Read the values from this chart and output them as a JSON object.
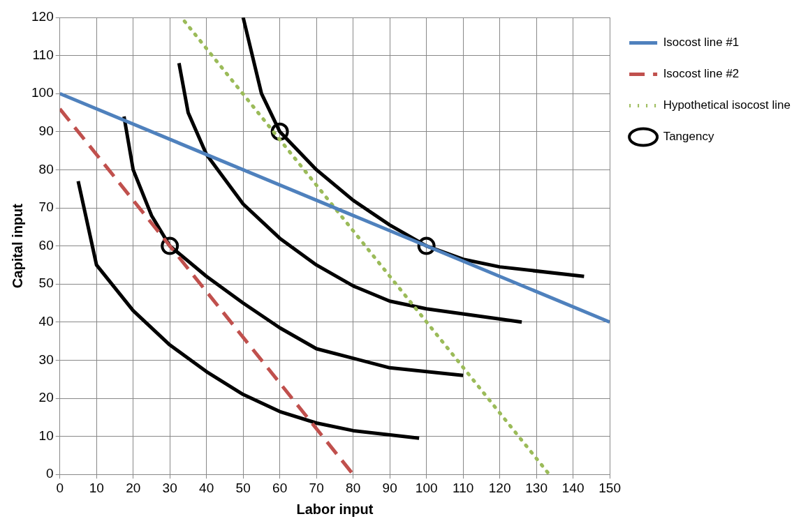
{
  "chart_data": {
    "type": "line",
    "xlabel": "Labor input",
    "ylabel": "Capital input",
    "xlim": [
      0,
      150
    ],
    "ylim": [
      0,
      120
    ],
    "xticks": [
      0,
      10,
      20,
      30,
      40,
      50,
      60,
      70,
      80,
      90,
      100,
      110,
      120,
      130,
      140,
      150
    ],
    "yticks": [
      0,
      10,
      20,
      30,
      40,
      50,
      60,
      70,
      80,
      90,
      100,
      110,
      120
    ],
    "grid": true,
    "legend": "right",
    "series": [
      {
        "name": "Isocost line #1",
        "color": "#4f81bd",
        "line_style": "solid",
        "x": [
          0,
          150
        ],
        "values": [
          100,
          40
        ]
      },
      {
        "name": "Isocost line #2",
        "color": "#c0504d",
        "line_style": "dashed",
        "x": [
          0,
          80
        ],
        "values": [
          96,
          0
        ]
      },
      {
        "name": "Hypothetical isocost line",
        "color": "#9bbb59",
        "line_style": "dotted",
        "x": [
          34,
          133.5
        ],
        "values": [
          119,
          0
        ]
      },
      {
        "color": "#000000",
        "line_style": "solid",
        "x": [
          5,
          10,
          20,
          30,
          40,
          50,
          60,
          70,
          80,
          98
        ],
        "values": [
          77,
          55,
          43,
          34,
          27,
          21,
          16.5,
          13.5,
          11.5,
          9.5
        ]
      },
      {
        "color": "#000000",
        "line_style": "solid",
        "x": [
          17.5,
          20,
          25,
          30,
          40,
          50,
          60,
          70,
          80,
          90,
          110
        ],
        "values": [
          94,
          80,
          68,
          60,
          52,
          45,
          38.5,
          33,
          30.5,
          28,
          26
        ]
      },
      {
        "color": "#000000",
        "line_style": "solid",
        "x": [
          32.5,
          35,
          40,
          50,
          60,
          70,
          80,
          90,
          100,
          126
        ],
        "values": [
          108,
          95,
          84,
          71,
          62,
          55,
          49.5,
          45.5,
          43.5,
          40
        ]
      },
      {
        "color": "#000000",
        "line_style": "solid",
        "x": [
          50,
          55,
          60,
          70,
          80,
          90,
          100,
          110,
          120,
          143
        ],
        "values": [
          120,
          100,
          90,
          80,
          72,
          65.5,
          60,
          56.5,
          54.5,
          52
        ]
      },
      {
        "name": "Tangency",
        "type": "scatter",
        "marker": "circle",
        "color": "#000000",
        "x": [
          30,
          60,
          100
        ],
        "values": [
          60,
          90,
          60
        ]
      }
    ]
  }
}
